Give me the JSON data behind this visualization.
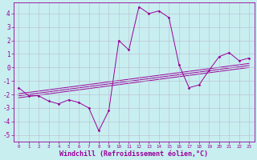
{
  "xlabel": "Windchill (Refroidissement éolien,°C)",
  "bg_color": "#c8eef0",
  "grid_color": "#bbbbcc",
  "line_color": "#990099",
  "xlim": [
    -0.5,
    23.5
  ],
  "ylim": [
    -5.5,
    4.8
  ],
  "xticks": [
    0,
    1,
    2,
    3,
    4,
    5,
    6,
    7,
    8,
    9,
    10,
    11,
    12,
    13,
    14,
    15,
    16,
    17,
    18,
    19,
    20,
    21,
    22,
    23
  ],
  "yticks": [
    -5,
    -4,
    -3,
    -2,
    -1,
    0,
    1,
    2,
    3,
    4
  ],
  "data_x": [
    0,
    1,
    2,
    3,
    4,
    5,
    6,
    7,
    8,
    9,
    10,
    11,
    12,
    13,
    14,
    15,
    16,
    17,
    18,
    19,
    20,
    21,
    22,
    23
  ],
  "data_y": [
    -1.5,
    -2.1,
    -2.1,
    -2.5,
    -2.7,
    -2.4,
    -2.6,
    -3.0,
    -4.7,
    -3.2,
    2.0,
    1.3,
    4.5,
    4.0,
    4.2,
    3.7,
    0.2,
    -1.5,
    -1.3,
    -0.2,
    0.8,
    1.1,
    0.5,
    0.7
  ],
  "reg_lines": [
    {
      "x0": 0,
      "x1": 23,
      "y0": -2.1,
      "y1": 0.15
    },
    {
      "x0": 0,
      "x1": 23,
      "y0": -1.95,
      "y1": 0.3
    },
    {
      "x0": 0,
      "x1": 23,
      "y0": -2.25,
      "y1": 0.0
    }
  ],
  "xlabel_fontsize": 6,
  "tick_fontsize": 5,
  "xlabel_color": "#990099",
  "tick_color": "#990099",
  "spine_color": "#990099"
}
